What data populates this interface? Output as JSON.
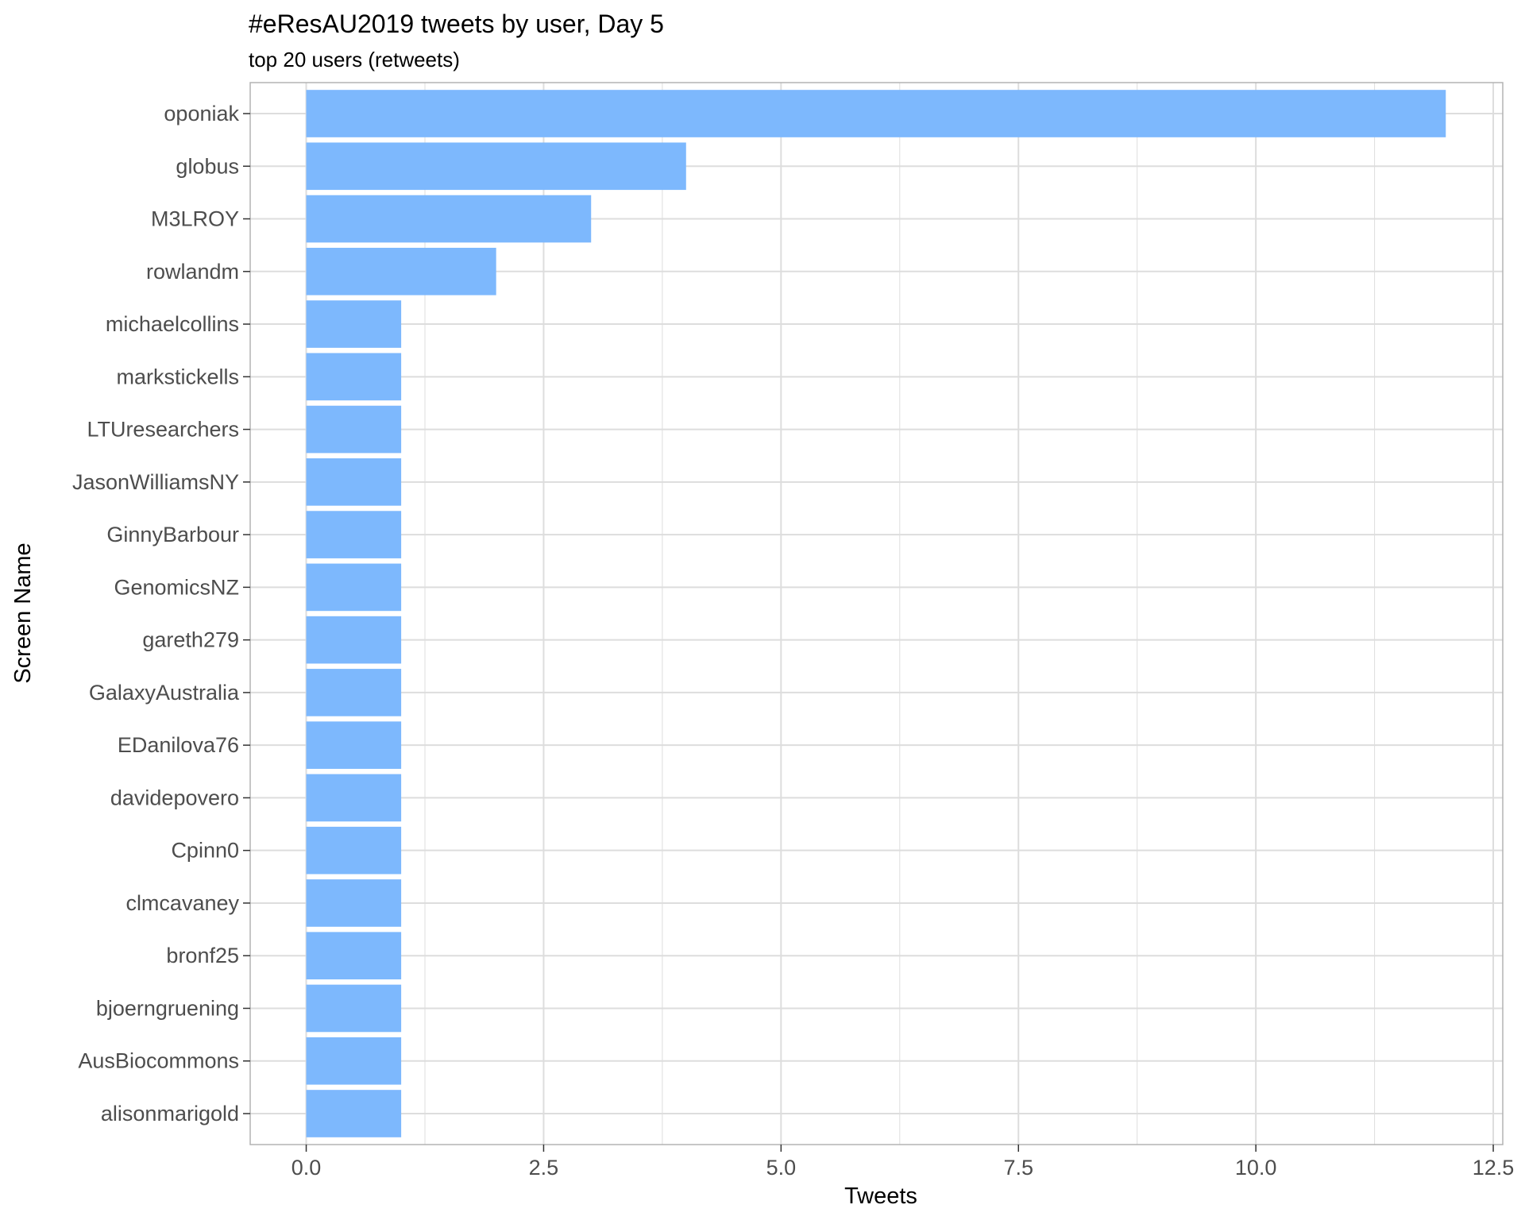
{
  "chart_data": {
    "type": "bar",
    "orientation": "horizontal",
    "title": "#eResAU2019 tweets by user, Day 5",
    "subtitle": "top 20 users (retweets)",
    "xlabel": "Tweets",
    "ylabel": "Screen Name",
    "xlim": [
      -0.59,
      12.6
    ],
    "x_ticks": [
      0.0,
      2.5,
      5.0,
      7.5,
      10.0,
      12.5
    ],
    "x_tick_labels": [
      "0.0",
      "2.5",
      "5.0",
      "7.5",
      "10.0",
      "12.5"
    ],
    "grid": true,
    "bar_color": "#7DB8FD",
    "gridline_color": "#DDDDDD",
    "panel_border_color": "#B3B3B3",
    "categories": [
      "oponiak",
      "globus",
      "M3LROY",
      "rowlandm",
      "michaelcollins",
      "markstickells",
      "LTUresearchers",
      "JasonWilliamsNY",
      "GinnyBarbour",
      "GenomicsNZ",
      "gareth279",
      "GalaxyAustralia",
      "EDanilova76",
      "davidepovero",
      "Cpinn0",
      "clmcavaney",
      "bronf25",
      "bjoerngruening",
      "AusBiocommons",
      "alisonmarigold"
    ],
    "values": [
      12,
      4,
      3,
      2,
      1,
      1,
      1,
      1,
      1,
      1,
      1,
      1,
      1,
      1,
      1,
      1,
      1,
      1,
      1,
      1
    ]
  }
}
